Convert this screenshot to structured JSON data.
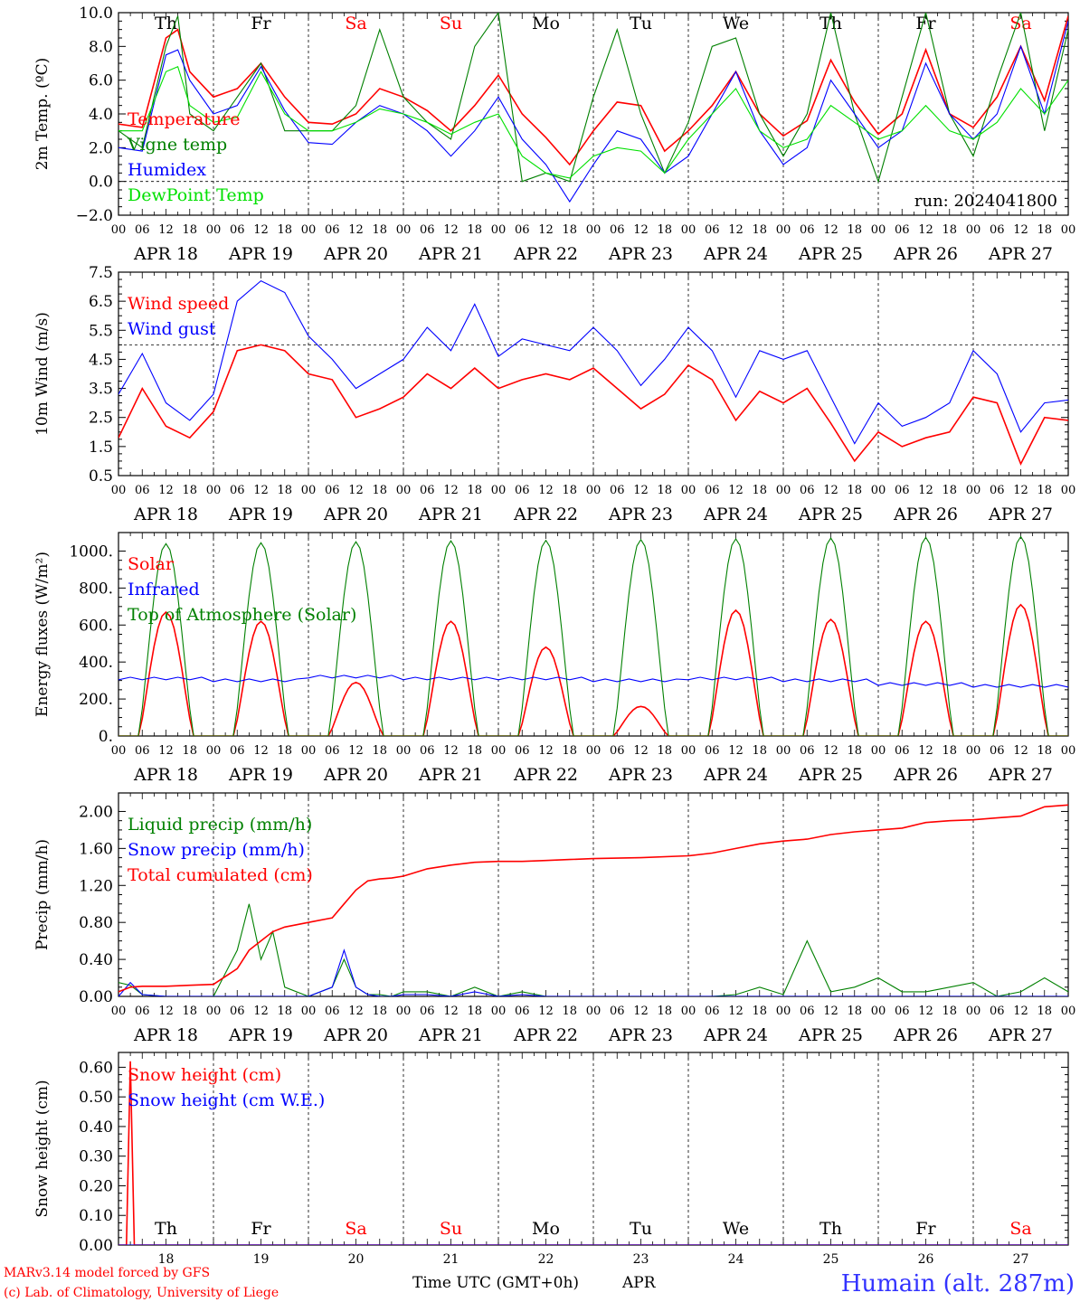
{
  "footer": {
    "model_credit": "MARv3.14 model forced by GFS",
    "copyright": "(c) Lab. of Climatology, University of Liege",
    "xaxis_title": "Time UTC (GMT+0h)",
    "xaxis_month": "APR",
    "station": "Humain (alt. 287m)"
  },
  "colors": {
    "red": "#ff0000",
    "darkgreen": "#008000",
    "blue": "#0000ff",
    "lightgreen": "#00e000",
    "weekend": "#ff0000",
    "weekday": "#000000"
  },
  "chart_data": [
    {
      "type": "line",
      "ylabel": "2m Temp. (ºC)",
      "ylim": [
        -2,
        10
      ],
      "yticks": [
        "10.0",
        "8.0",
        "6.0",
        "4.0",
        "2.0",
        "0.0",
        "−2.0"
      ],
      "yticks_values": [
        10,
        8,
        6,
        4,
        2,
        0,
        -2
      ],
      "reference_line": 0,
      "annotation": "run: 2024041800",
      "day_names": [
        "Th",
        "Fr",
        "Sa",
        "Su",
        "Mo",
        "Tu",
        "We",
        "Th",
        "Fr",
        "Sa"
      ],
      "weekend_flags": [
        false,
        false,
        true,
        true,
        false,
        false,
        false,
        false,
        false,
        true
      ],
      "hour_ticks": [
        "00",
        "06",
        "12",
        "18"
      ],
      "date_labels": [
        "APR 18",
        "APR 19",
        "APR 20",
        "APR 21",
        "APR 22",
        "APR 23",
        "APR 24",
        "APR 25",
        "APR 26",
        "APR 27"
      ],
      "x_hours": [
        0,
        6,
        12,
        15,
        18,
        24,
        30,
        36,
        42,
        48,
        54,
        60,
        66,
        72,
        78,
        84,
        90,
        96,
        102,
        108,
        114,
        120,
        126,
        132,
        138,
        144,
        150,
        156,
        162,
        168,
        174,
        180,
        186,
        192,
        198,
        204,
        210,
        216,
        222,
        228,
        234,
        240
      ],
      "series": [
        {
          "name": "Temperature",
          "color": "red",
          "values": [
            3.4,
            3.2,
            8.5,
            9.0,
            6.5,
            5.0,
            5.5,
            7.0,
            5.0,
            3.5,
            3.4,
            4.0,
            5.5,
            5.0,
            4.2,
            3.0,
            4.5,
            6.3,
            4.0,
            2.6,
            1.0,
            3.0,
            4.7,
            4.5,
            1.8,
            3.0,
            4.5,
            6.5,
            4.0,
            2.7,
            3.6,
            7.2,
            4.7,
            2.8,
            4.0,
            7.8,
            4.0,
            3.2,
            5.0,
            8.0,
            4.8,
            9.8
          ]
        },
        {
          "name": "Vigne temp",
          "color": "darkgreen",
          "values": [
            3.0,
            2.0,
            8.0,
            9.8,
            4.0,
            3.0,
            5.0,
            7.0,
            3.0,
            3.0,
            3.0,
            4.5,
            9.0,
            5.0,
            3.5,
            2.5,
            8.0,
            10.0,
            0.0,
            0.5,
            0.0,
            5.0,
            9.0,
            4.0,
            0.5,
            3.5,
            8.0,
            8.5,
            4.0,
            1.5,
            4.0,
            10.0,
            4.0,
            0.0,
            5.0,
            10.0,
            4.0,
            1.5,
            6.0,
            10.0,
            3.0,
            9.0
          ]
        },
        {
          "name": "Humidex",
          "color": "blue",
          "values": [
            2.0,
            1.8,
            7.5,
            7.8,
            6.0,
            4.0,
            4.5,
            6.8,
            4.2,
            2.3,
            2.2,
            3.5,
            4.5,
            4.0,
            3.0,
            1.5,
            3.0,
            5.0,
            2.5,
            1.0,
            -1.2,
            1.0,
            3.0,
            2.5,
            0.5,
            1.5,
            4.0,
            6.5,
            3.0,
            1.0,
            2.0,
            6.0,
            4.0,
            2.0,
            3.0,
            7.0,
            4.0,
            2.5,
            4.0,
            8.0,
            4.0,
            9.5
          ]
        },
        {
          "name": "DewPoint Temp",
          "color": "lightgreen",
          "values": [
            3.0,
            3.0,
            6.5,
            6.8,
            4.5,
            3.5,
            3.8,
            6.5,
            4.0,
            3.0,
            3.0,
            3.5,
            4.3,
            4.0,
            3.5,
            2.8,
            3.5,
            4.0,
            1.5,
            0.5,
            0.2,
            1.5,
            2.0,
            1.8,
            0.5,
            2.5,
            4.0,
            5.5,
            3.0,
            2.0,
            2.5,
            4.5,
            3.5,
            2.5,
            3.0,
            4.5,
            3.0,
            2.5,
            3.5,
            5.5,
            4.0,
            6.0
          ]
        }
      ]
    },
    {
      "type": "line",
      "ylabel": "10m Wind (m/s)",
      "ylim": [
        0.5,
        7.5
      ],
      "yticks": [
        "7.5",
        "6.5",
        "5.5",
        "4.5",
        "3.5",
        "2.5",
        "1.5",
        "0.5"
      ],
      "yticks_values": [
        7.5,
        6.5,
        5.5,
        4.5,
        3.5,
        2.5,
        1.5,
        0.5
      ],
      "reference_line": 5.0,
      "hour_ticks": [
        "00",
        "06",
        "12",
        "18"
      ],
      "date_labels": [
        "APR 18",
        "APR 19",
        "APR 20",
        "APR 21",
        "APR 22",
        "APR 23",
        "APR 24",
        "APR 25",
        "APR 26",
        "APR 27"
      ],
      "x_hours": [
        0,
        6,
        12,
        18,
        24,
        30,
        36,
        42,
        48,
        54,
        60,
        66,
        72,
        78,
        84,
        90,
        96,
        102,
        108,
        114,
        120,
        126,
        132,
        138,
        144,
        150,
        156,
        162,
        168,
        174,
        180,
        186,
        192,
        198,
        204,
        210,
        216,
        222,
        228,
        234,
        240
      ],
      "series": [
        {
          "name": "Wind speed",
          "color": "red",
          "values": [
            1.8,
            3.5,
            2.2,
            1.8,
            2.7,
            4.8,
            5.0,
            4.8,
            4.0,
            3.8,
            2.5,
            2.8,
            3.2,
            4.0,
            3.5,
            4.2,
            3.5,
            3.8,
            4.0,
            3.8,
            4.2,
            3.5,
            2.8,
            3.3,
            4.3,
            3.8,
            2.4,
            3.4,
            3.0,
            3.5,
            2.3,
            1.0,
            2.0,
            1.5,
            1.8,
            2.0,
            3.2,
            3.0,
            0.9,
            2.5,
            2.4
          ]
        },
        {
          "name": "Wind gust",
          "color": "blue",
          "values": [
            3.3,
            4.7,
            3.0,
            2.4,
            3.3,
            6.5,
            7.2,
            6.8,
            5.3,
            4.5,
            3.5,
            4.0,
            4.5,
            5.6,
            4.8,
            6.4,
            4.6,
            5.2,
            5.0,
            4.8,
            5.6,
            4.8,
            3.6,
            4.5,
            5.6,
            4.8,
            3.2,
            4.8,
            4.5,
            4.8,
            3.2,
            1.6,
            3.0,
            2.2,
            2.5,
            3.0,
            4.8,
            4.0,
            2.0,
            3.0,
            3.1
          ]
        }
      ]
    },
    {
      "type": "line",
      "ylabel": "Energy fluxes (W/m²)",
      "ylim": [
        0,
        1100
      ],
      "yticks": [
        "1000.",
        "800.",
        "600.",
        "400.",
        "200.",
        "0."
      ],
      "yticks_values": [
        1000,
        800,
        600,
        400,
        200,
        0
      ],
      "hour_ticks": [
        "00",
        "06",
        "12",
        "18"
      ],
      "date_labels": [
        "APR 18",
        "APR 19",
        "APR 20",
        "APR 21",
        "APR 22",
        "APR 23",
        "APR 24",
        "APR 25",
        "APR 26",
        "APR 27"
      ],
      "series": [
        {
          "name": "Solar",
          "color": "red",
          "daily_peaks": [
            670,
            620,
            290,
            620,
            480,
            160,
            680,
            630,
            620,
            710
          ]
        },
        {
          "name": "Infrared",
          "color": "blue",
          "base_value": 300,
          "values": [
            310,
            300,
            320,
            310,
            310,
            300,
            310,
            300,
            280,
            270
          ]
        },
        {
          "name": "Top of Atmosphere (Solar)",
          "color": "darkgreen",
          "daily_peaks": [
            1040,
            1045,
            1050,
            1055,
            1058,
            1062,
            1066,
            1070,
            1074,
            1078
          ]
        }
      ]
    },
    {
      "type": "line",
      "ylabel": "Precip (mm/h)",
      "ylim": [
        0,
        2.2
      ],
      "yticks": [
        "2.00",
        "1.60",
        "1.20",
        "0.80",
        "0.40",
        "0.00"
      ],
      "yticks_values": [
        2.0,
        1.6,
        1.2,
        0.8,
        0.4,
        0.0
      ],
      "hour_ticks": [
        "00",
        "06",
        "12",
        "18"
      ],
      "date_labels": [
        "APR 18",
        "APR 19",
        "APR 20",
        "APR 21",
        "APR 22",
        "APR 23",
        "APR 24",
        "APR 25",
        "APR 26",
        "APR 27"
      ],
      "x_hours": [
        0,
        3,
        6,
        12,
        18,
        24,
        30,
        33,
        36,
        39,
        42,
        48,
        54,
        57,
        60,
        63,
        66,
        69,
        72,
        78,
        84,
        90,
        96,
        102,
        108,
        114,
        120,
        132,
        144,
        150,
        156,
        162,
        168,
        174,
        180,
        186,
        192,
        198,
        204,
        210,
        216,
        222,
        228,
        234,
        240
      ],
      "series": [
        {
          "name": "Liquid precip (mm/h)",
          "color": "darkgreen",
          "values": [
            0.15,
            0.12,
            0.02,
            0.0,
            0.0,
            0.0,
            0.5,
            1.0,
            0.4,
            0.7,
            0.1,
            0.0,
            0.1,
            0.4,
            0.1,
            0.02,
            0.02,
            0.0,
            0.05,
            0.05,
            0.0,
            0.1,
            0.0,
            0.05,
            0.0,
            0.0,
            0.0,
            0.0,
            0.0,
            0.0,
            0.02,
            0.1,
            0.02,
            0.6,
            0.05,
            0.1,
            0.2,
            0.05,
            0.05,
            0.1,
            0.15,
            0.0,
            0.05,
            0.2,
            0.05
          ]
        },
        {
          "name": "Snow precip (mm/h)",
          "color": "blue",
          "values": [
            0.0,
            0.15,
            0.02,
            0.0,
            0.0,
            0.0,
            0.0,
            0.0,
            0.0,
            0.0,
            0.0,
            0.0,
            0.1,
            0.5,
            0.1,
            0.02,
            0.0,
            0.0,
            0.02,
            0.02,
            0.0,
            0.05,
            0.0,
            0.02,
            0.0,
            0.0,
            0.0,
            0.0,
            0.0,
            0.0,
            0.0,
            0.0,
            0.0,
            0.0,
            0.0,
            0.0,
            0.0,
            0.0,
            0.0,
            0.0,
            0.0,
            0.0,
            0.0,
            0.0,
            0.0
          ]
        },
        {
          "name": "Total cumulated (cm)",
          "color": "red",
          "values": [
            0.05,
            0.1,
            0.11,
            0.11,
            0.12,
            0.13,
            0.3,
            0.5,
            0.6,
            0.7,
            0.75,
            0.8,
            0.85,
            1.0,
            1.15,
            1.25,
            1.27,
            1.28,
            1.3,
            1.38,
            1.42,
            1.45,
            1.46,
            1.46,
            1.47,
            1.48,
            1.49,
            1.5,
            1.52,
            1.55,
            1.6,
            1.65,
            1.68,
            1.7,
            1.75,
            1.78,
            1.8,
            1.82,
            1.88,
            1.9,
            1.91,
            1.93,
            1.95,
            2.05,
            2.07
          ]
        }
      ]
    },
    {
      "type": "line",
      "ylabel": "Snow height (cm)",
      "ylim": [
        0,
        0.65
      ],
      "yticks": [
        "0.60",
        "0.50",
        "0.40",
        "0.30",
        "0.20",
        "0.10",
        "0.00"
      ],
      "yticks_values": [
        0.6,
        0.5,
        0.4,
        0.3,
        0.2,
        0.1,
        0.0
      ],
      "day_numbers": [
        "18",
        "19",
        "20",
        "21",
        "22",
        "23",
        "24",
        "25",
        "26",
        "27"
      ],
      "day_names": [
        "Th",
        "Fr",
        "Sa",
        "Su",
        "Mo",
        "Tu",
        "We",
        "Th",
        "Fr",
        "Sa"
      ],
      "weekend_flags": [
        false,
        false,
        true,
        true,
        false,
        false,
        false,
        false,
        false,
        true
      ],
      "x_hours": [
        0,
        1,
        2,
        3,
        4,
        5,
        6,
        240
      ],
      "series": [
        {
          "name": "Snow height (cm)",
          "color": "red",
          "values": [
            0.0,
            0.0,
            0.0,
            0.62,
            0.0,
            0.0,
            0.0,
            0.0
          ]
        },
        {
          "name": "Snow height (cm W.E.)",
          "color": "blue",
          "values": [
            0.0,
            0.0,
            0.0,
            0.0,
            0.0,
            0.0,
            0.0,
            0.0
          ]
        }
      ]
    }
  ]
}
